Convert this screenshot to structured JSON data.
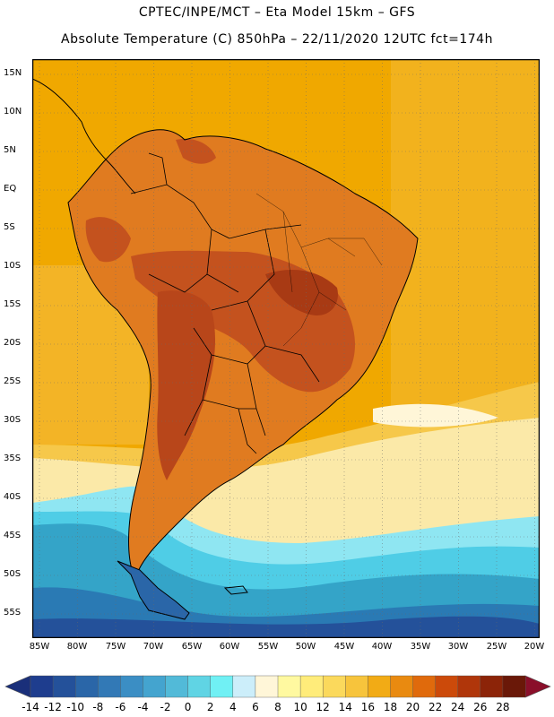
{
  "header": {
    "line1": "CPTEC/INPE/MCT –  Eta Model 15km – GFS",
    "line2": "Absolute Temperature (C) 850hPa – 22/11/2020 12UTC fct=174h"
  },
  "map": {
    "lat_labels": [
      "15N",
      "10N",
      "5N",
      "EQ",
      "5S",
      "10S",
      "15S",
      "20S",
      "25S",
      "30S",
      "35S",
      "40S",
      "45S",
      "50S",
      "55S"
    ],
    "lon_labels": [
      "85W",
      "80W",
      "75W",
      "70W",
      "65W",
      "60W",
      "55W",
      "50W",
      "45W",
      "40W",
      "35W",
      "30W",
      "25W",
      "20W"
    ],
    "extent": {
      "lon_min": -86,
      "lon_max": -19.5,
      "lat_min": -58,
      "lat_max": 17
    },
    "ocean_color": "#f0a800",
    "land_hot_color": "#c4521e",
    "land_warm_color": "#e07b20",
    "cold_zone_colors": [
      "#34a4c8",
      "#4fcde6",
      "#8fe6f2",
      "#fbe9a8"
    ]
  },
  "colorbar": {
    "labels": [
      "-14",
      "-12",
      "-10",
      "-8",
      "-6",
      "-4",
      "-2",
      "0",
      "2",
      "4",
      "6",
      "8",
      "10",
      "12",
      "14",
      "16",
      "18",
      "20",
      "22",
      "24",
      "26",
      "28"
    ],
    "colors": [
      "#1e3d8e",
      "#24519a",
      "#2a66a8",
      "#3279b6",
      "#3b8ec4",
      "#44a4cf",
      "#52bad8",
      "#60d4e4",
      "#70f0f4",
      "#cceefa",
      "#fff6d8",
      "#fff9a0",
      "#ffec7a",
      "#fbd95c",
      "#f7c43c",
      "#f2ab15",
      "#e98a10",
      "#e06a0c",
      "#cc4a0a",
      "#b0360a",
      "#8c2408",
      "#6a1808"
    ],
    "under_color": "#1a2f7a",
    "over_color": "#8a0f2a"
  }
}
